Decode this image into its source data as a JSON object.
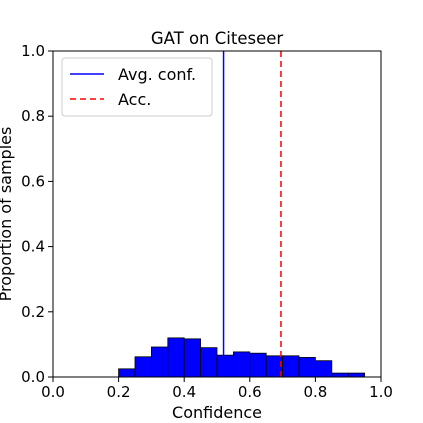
{
  "chart_data": {
    "type": "bar",
    "title": "GAT on Citeseer",
    "xlabel": "Confidence",
    "ylabel": "Proportion of samples",
    "xlim": [
      0.0,
      1.0
    ],
    "ylim": [
      0.0,
      1.0
    ],
    "xticks": [
      "0.0",
      "0.2",
      "0.4",
      "0.6",
      "0.8",
      "1.0"
    ],
    "yticks": [
      "0.0",
      "0.2",
      "0.4",
      "0.6",
      "0.8",
      "1.0"
    ],
    "bin_width": 0.05,
    "bins": [
      {
        "x": 0.2,
        "value": 0.025
      },
      {
        "x": 0.25,
        "value": 0.062
      },
      {
        "x": 0.3,
        "value": 0.092
      },
      {
        "x": 0.35,
        "value": 0.12
      },
      {
        "x": 0.4,
        "value": 0.117
      },
      {
        "x": 0.45,
        "value": 0.09
      },
      {
        "x": 0.5,
        "value": 0.067
      },
      {
        "x": 0.55,
        "value": 0.077
      },
      {
        "x": 0.6,
        "value": 0.073
      },
      {
        "x": 0.65,
        "value": 0.065
      },
      {
        "x": 0.7,
        "value": 0.065
      },
      {
        "x": 0.75,
        "value": 0.06
      },
      {
        "x": 0.8,
        "value": 0.05
      },
      {
        "x": 0.85,
        "value": 0.012
      },
      {
        "x": 0.9,
        "value": 0.012
      }
    ],
    "bar_color": "#0000ff",
    "bar_edge_color": "#000000",
    "reference_lines": [
      {
        "name": "Avg. conf.",
        "x": 0.52,
        "color": "#0000ff",
        "style": "solid"
      },
      {
        "name": "Acc.",
        "x": 0.695,
        "color": "#ff0000",
        "style": "dashed"
      }
    ],
    "legend": {
      "placement": "top-left",
      "entries": [
        "Avg. conf.",
        "Acc."
      ]
    },
    "grid": false
  }
}
